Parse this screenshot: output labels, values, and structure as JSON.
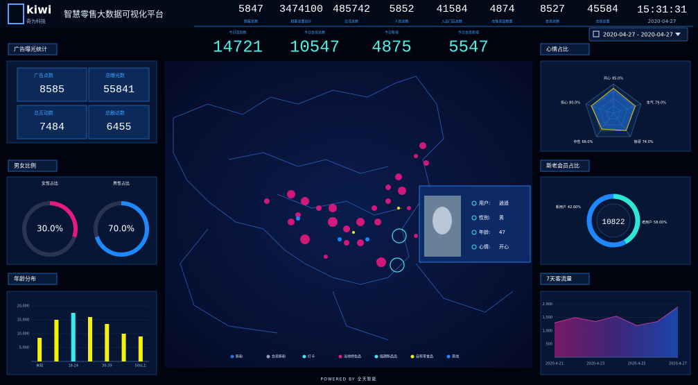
{
  "header": {
    "logo": "kiwi",
    "logo_sub": "奇为科技",
    "title": "智慧零售大数据可视化平台",
    "time": "15:31:31",
    "date": "2020-04-27"
  },
  "top_stats": [
    {
      "value": 5847,
      "label": "顾客总数"
    },
    {
      "value": 3474100,
      "label": "顾客总量总计"
    },
    {
      "value": 485742,
      "label": "日活总数"
    },
    {
      "value": 5852,
      "label": "人员总数"
    },
    {
      "value": 41584,
      "label": "入店门店总数"
    },
    {
      "value": 4874,
      "label": "在售商品数量"
    },
    {
      "value": 8527,
      "label": "会员总数"
    },
    {
      "value": 45584,
      "label": "会员总量"
    }
  ],
  "today_stats": [
    {
      "value": 14721,
      "label": "今日活跃数"
    },
    {
      "value": 10547,
      "label": "今日会员总数"
    },
    {
      "value": 4875,
      "label": "今日新增"
    },
    {
      "value": 5547,
      "label": "今日会员新增"
    }
  ],
  "date_range": "2020-04-27 - 2020-04-27",
  "ad_panel": {
    "title": "广告曝光统计",
    "items": [
      {
        "label": "广告点数",
        "value": 8585
      },
      {
        "label": "总曝光数",
        "value": 55841
      },
      {
        "label": "总互动数",
        "value": 7484
      },
      {
        "label": "总触达数",
        "value": 6455
      }
    ]
  },
  "gender_panel": {
    "title": "男女比例",
    "charts": [
      {
        "label": "女性占比",
        "value": 30,
        "value_label": "30.0%",
        "color": "#e6197e"
      },
      {
        "label": "男性占比",
        "value": 70,
        "value_label": "70.0%",
        "color": "#1e88ff"
      }
    ]
  },
  "age_chart": {
    "type": "bar",
    "title": "年龄分布",
    "categories": [
      "未知",
      null,
      "18-24",
      null,
      "30-39",
      null,
      "50以上"
    ],
    "values": [
      8500,
      15000,
      17500,
      16000,
      13500,
      10000,
      9000
    ],
    "colors": [
      "#f5f10a",
      "#f5f10a",
      "#3ee8f0",
      "#f5f10a",
      "#f5f10a",
      "#f5f10a",
      "#f5f10a"
    ],
    "ylim": [
      0,
      20000
    ],
    "yticks": [
      {
        "value": 5000,
        "label": "5,000"
      },
      {
        "value": 10000,
        "label": "10,000"
      },
      {
        "value": 15000,
        "label": "15,000"
      },
      {
        "value": 20000,
        "label": "20,000"
      }
    ]
  },
  "mood_chart": {
    "type": "radar",
    "title": "心情占比",
    "categories": [
      "开心",
      "生气",
      "惊讶",
      "中性",
      "伤心"
    ],
    "values": [
      85,
      79,
      74,
      68,
      80
    ],
    "value_labels": [
      "85.0%",
      "79.0%",
      "74.0%",
      "68.0%",
      "80.0%"
    ],
    "ylim": [
      0,
      100
    ],
    "color": "#1e6fd9"
  },
  "member_chart": {
    "type": "donut",
    "title": "新老会员占比",
    "total": 10822,
    "categories": [
      "新用户",
      "老用户"
    ],
    "values": [
      42,
      58
    ],
    "value_labels": [
      "42.00%",
      "58.00%"
    ],
    "colors": [
      "#2ee6d6",
      "#1e88ff"
    ]
  },
  "traffic_chart": {
    "type": "area",
    "title": "7天客流量",
    "x": [
      "2020-4-21",
      null,
      "2020-4-23",
      null,
      "2020-4-25",
      null,
      "2020-4-27"
    ],
    "values": [
      1300,
      1500,
      1350,
      1550,
      1200,
      1350,
      1900
    ],
    "ylim": [
      0,
      2200
    ],
    "yticks": [
      500,
      {
        "value": 1000,
        "label": "1,000"
      },
      {
        "value": 1500,
        "label": "1,500"
      },
      {
        "value": 2000,
        "label": "2,000"
      }
    ]
  },
  "profile": {
    "fields": [
      {
        "label": "用户:",
        "value": "逍遥"
      },
      {
        "label": "性别:",
        "value": "男"
      },
      {
        "label": "年龄:",
        "value": 47
      },
      {
        "label": "心情:",
        "value": "开心"
      }
    ]
  },
  "map_legend": [
    {
      "label": "新粉",
      "color": "#2a6fd6"
    },
    {
      "label": "会员新粉",
      "color": "#8aa0b8"
    },
    {
      "label": "打卡",
      "color": "#3ee8f0"
    },
    {
      "label": "当地特色品",
      "color": "#e6197e"
    },
    {
      "label": "临期新品品",
      "color": "#3ee8f0"
    },
    {
      "label": "自有零食品",
      "color": "#f5f10a"
    },
    {
      "label": "其他",
      "color": "#1e88ff"
    }
  ],
  "footer": "POWERED BY 全天智能"
}
